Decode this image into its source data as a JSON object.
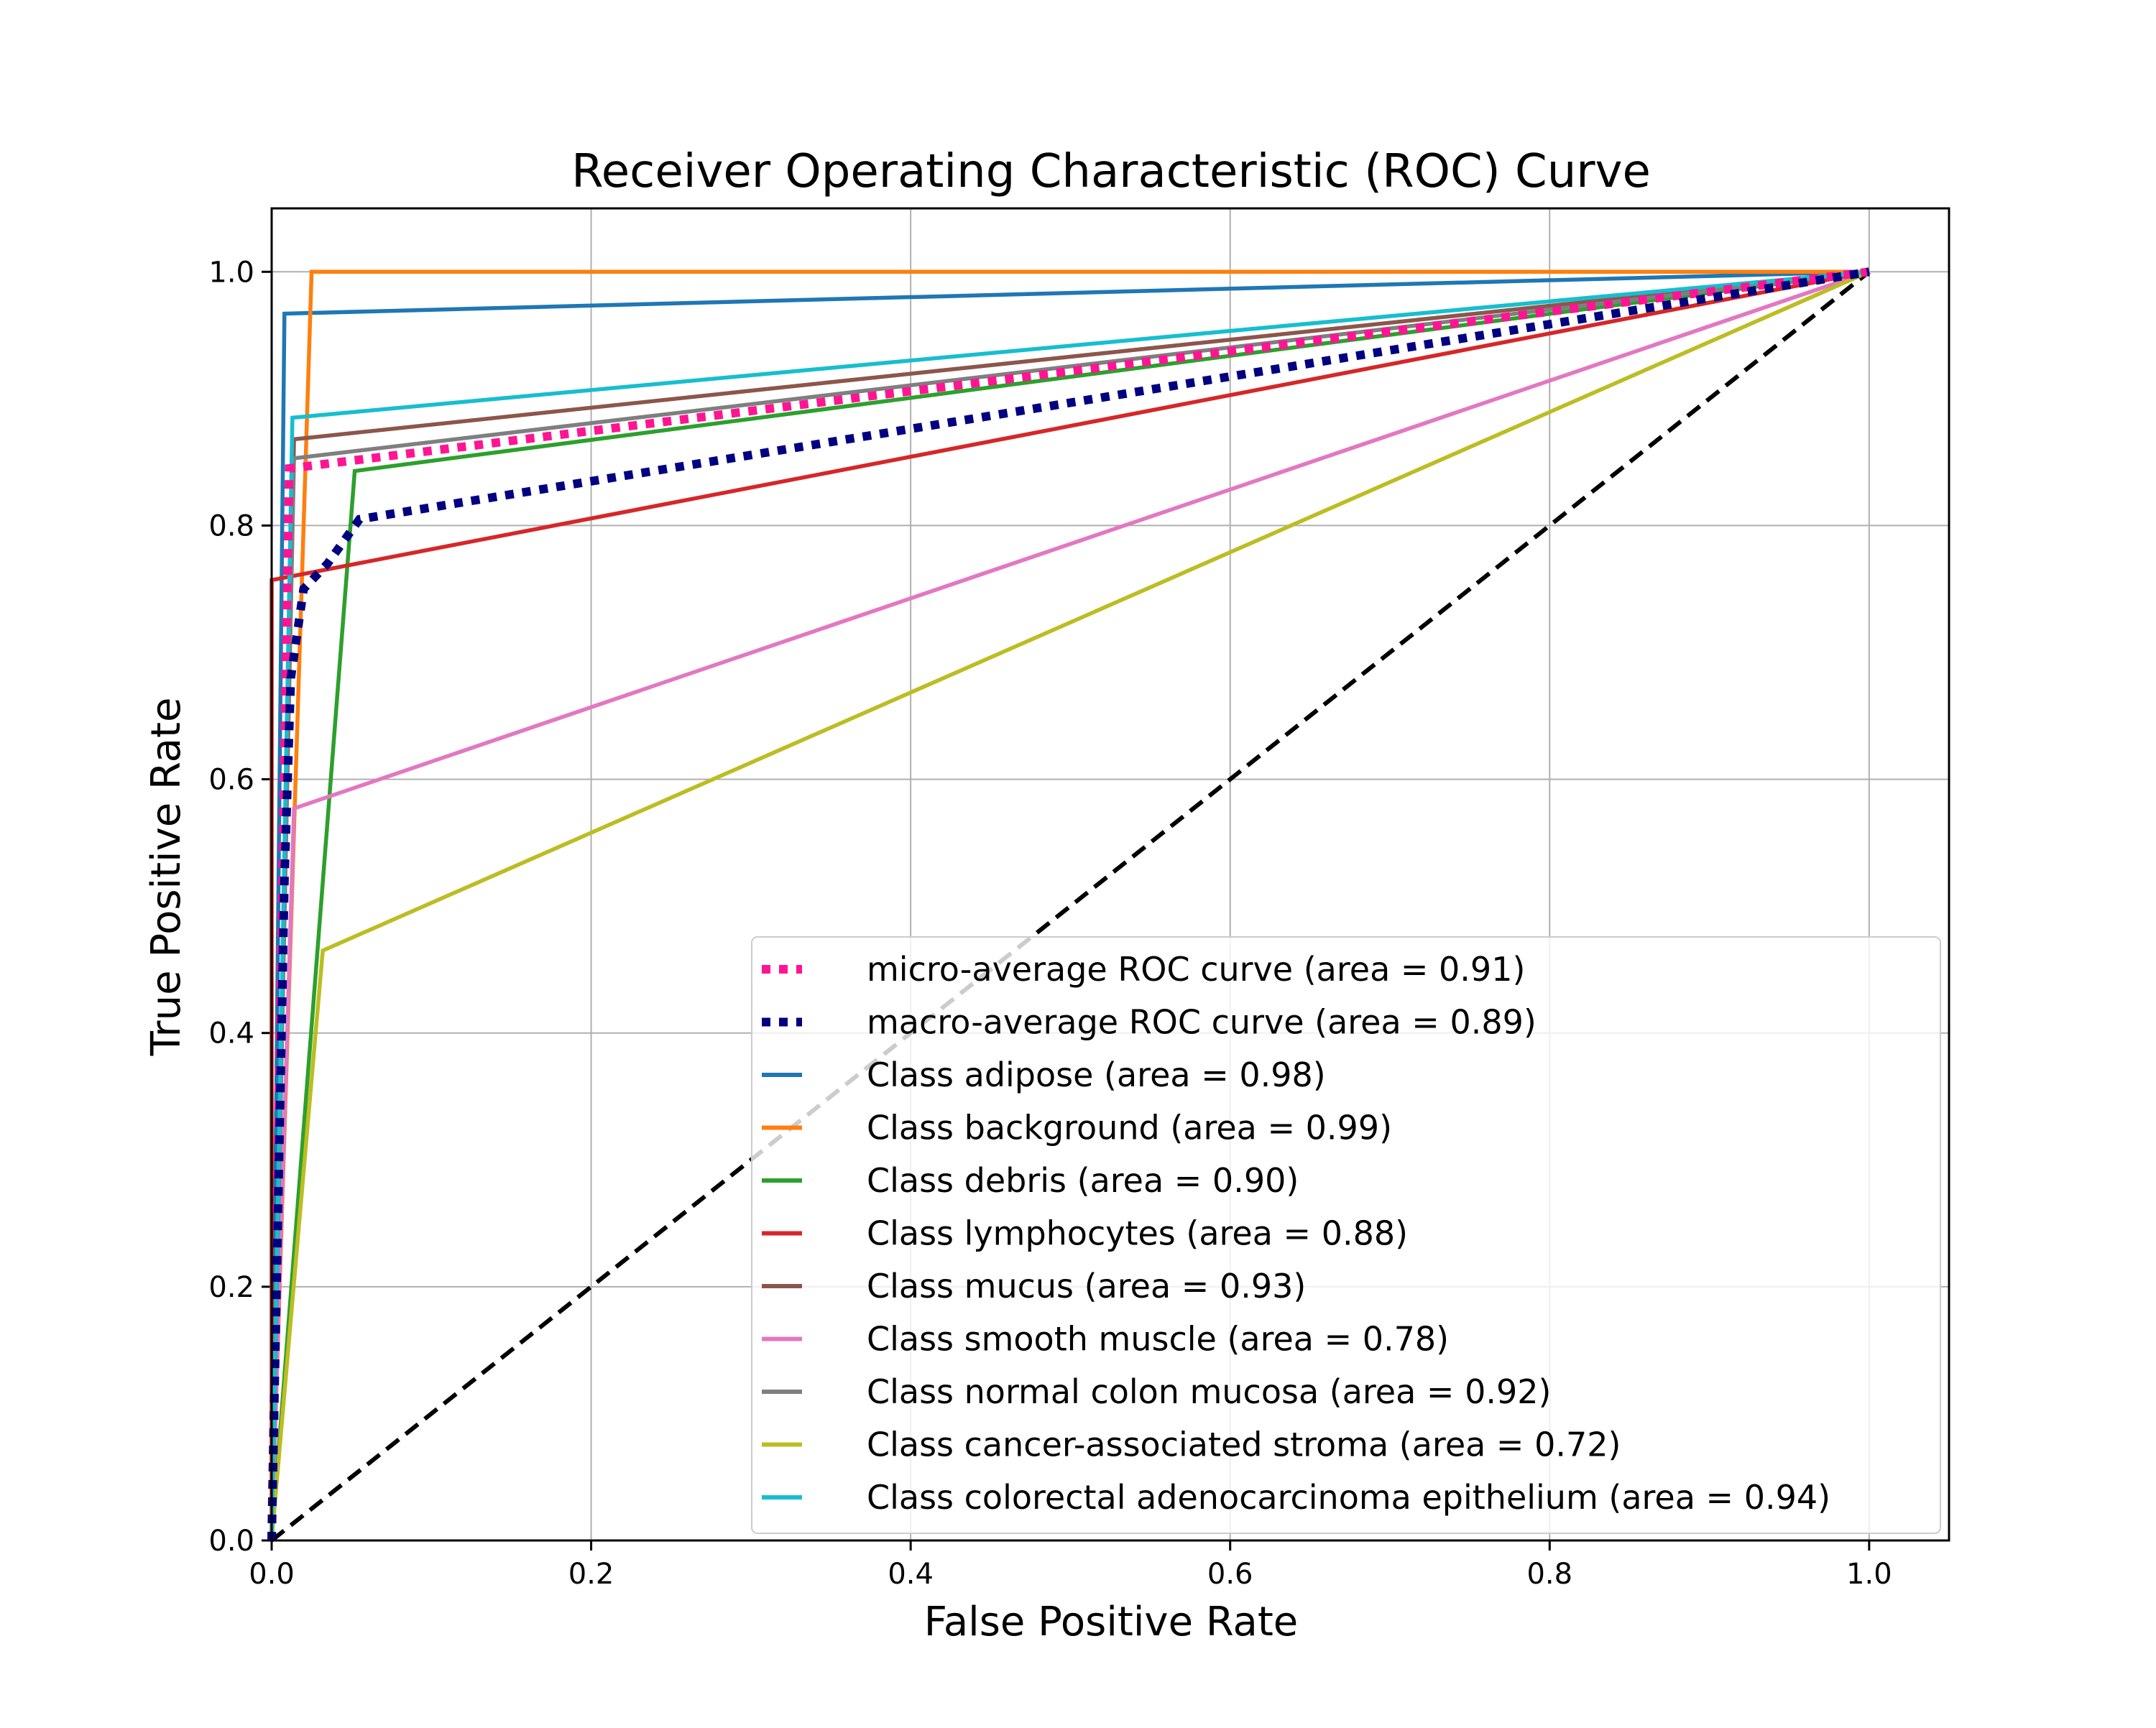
{
  "chart_data": {
    "type": "line",
    "title": "Receiver Operating Characteristic (ROC) Curve",
    "xlabel": "False Positive Rate",
    "ylabel": "True Positive Rate",
    "xlim": [
      0.0,
      1.05
    ],
    "ylim": [
      0.0,
      1.05
    ],
    "xticks": [
      "0.0",
      "0.2",
      "0.4",
      "0.6",
      "0.8",
      "1.0"
    ],
    "yticks": [
      "0.0",
      "0.2",
      "0.4",
      "0.6",
      "0.8",
      "1.0"
    ],
    "grid": true,
    "legend_position": "lower-right",
    "diagonal": {
      "x": [
        0,
        1
      ],
      "y": [
        0,
        1
      ],
      "color": "#000000",
      "dash": "dashed"
    },
    "series": [
      {
        "name": "micro-average ROC curve (area = 0.91)",
        "color": "#ff1493",
        "style": "dotted",
        "x": [
          0,
          0.011,
          1.0
        ],
        "y": [
          0,
          0.845,
          1.0
        ]
      },
      {
        "name": "macro-average ROC curve (area = 0.89)",
        "color": "#000080",
        "style": "dotted",
        "x": [
          0,
          0.004,
          0.008,
          0.012,
          0.02,
          0.035,
          0.055,
          1.0
        ],
        "y": [
          0,
          0.26,
          0.52,
          0.68,
          0.75,
          0.77,
          0.805,
          1.0
        ]
      },
      {
        "name": "Class adipose (area = 0.98)",
        "color": "#1f77b4",
        "style": "solid",
        "x": [
          0,
          0.008,
          1.0
        ],
        "y": [
          0,
          0.967,
          1.0
        ]
      },
      {
        "name": "Class background (area = 0.99)",
        "color": "#ff7f0e",
        "style": "solid",
        "x": [
          0,
          0.025,
          1.0
        ],
        "y": [
          0,
          1.0,
          1.0
        ]
      },
      {
        "name": "Class debris (area = 0.90)",
        "color": "#2ca02c",
        "style": "solid",
        "x": [
          0,
          0.052,
          1.0
        ],
        "y": [
          0,
          0.843,
          1.0
        ]
      },
      {
        "name": "Class lymphocytes (area = 0.88)",
        "color": "#d62728",
        "style": "solid",
        "x": [
          0,
          0.0,
          1.0
        ],
        "y": [
          0,
          0.757,
          1.0
        ]
      },
      {
        "name": "Class mucus (area = 0.93)",
        "color": "#8c564b",
        "style": "solid",
        "x": [
          0,
          0.014,
          1.0
        ],
        "y": [
          0,
          0.868,
          1.0
        ]
      },
      {
        "name": "Class smooth muscle (area = 0.78)",
        "color": "#e377c2",
        "style": "solid",
        "x": [
          0,
          0.014,
          1.0
        ],
        "y": [
          0,
          0.577,
          1.0
        ]
      },
      {
        "name": "Class normal colon mucosa (area = 0.92)",
        "color": "#7f7f7f",
        "style": "solid",
        "x": [
          0,
          0.014,
          1.0
        ],
        "y": [
          0,
          0.853,
          1.0
        ]
      },
      {
        "name": "Class cancer-associated stroma (area = 0.72)",
        "color": "#bcbd22",
        "style": "solid",
        "x": [
          0,
          0.032,
          1.0
        ],
        "y": [
          0,
          0.465,
          1.0
        ]
      },
      {
        "name": "Class colorectal adenocarcinoma epithelium (area = 0.94)",
        "color": "#17becf",
        "style": "solid",
        "x": [
          0,
          0.013,
          1.0
        ],
        "y": [
          0,
          0.885,
          1.0
        ]
      }
    ]
  }
}
